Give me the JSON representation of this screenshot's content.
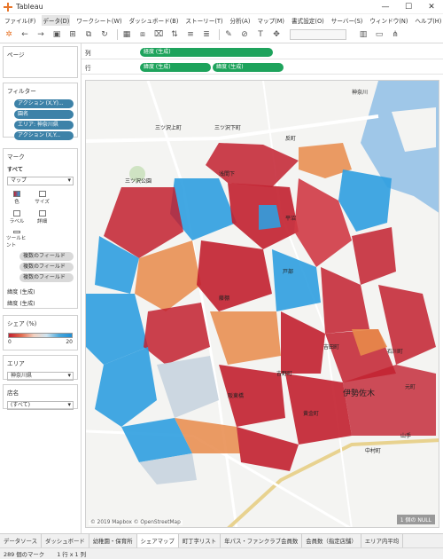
{
  "window": {
    "title": "Tableau"
  },
  "menu": [
    "ファイル(F)",
    "データ(D)",
    "ワークシート(W)",
    "ダッシュボード(B)",
    "ストーリー(T)",
    "分析(A)",
    "マップ(M)",
    "書式設定(O)",
    "サーバー(S)",
    "ウィンドウ(N)",
    "ヘルプ(H)"
  ],
  "left": {
    "pages_title": "ページ",
    "filters_title": "フィルター",
    "filters": [
      "アクション (X,Y)...",
      "園名",
      "エリア: 神奈川県",
      "アクション (X,Y..."
    ],
    "marks_title": "マーク",
    "marks_all": "すべて",
    "mark_type": "マップ",
    "mark_buttons": [
      "色",
      "サイズ",
      "ラベル",
      "詳細",
      "ツールヒント"
    ],
    "multi_fields": [
      "複数のフィールド",
      "複数のフィールド",
      "複数のフィールド"
    ],
    "lat_rows": [
      "緯度 (生成)",
      "緯度 (生成)"
    ],
    "share_title": "シェア (%)",
    "share_min": "0",
    "share_max": "20",
    "area_title": "エリア",
    "area_value": "神奈川県",
    "store_title": "店名",
    "store_value": "(すべて)"
  },
  "shelves": {
    "columns_label": "列",
    "columns_pills": [
      "経度 (生成)"
    ],
    "rows_label": "行",
    "rows_pills": [
      "緯度 (生成)",
      "緯度 (生成)"
    ]
  },
  "map": {
    "labels": [
      "神奈川",
      "三ツ沢上町",
      "三ツ沢下町",
      "反町",
      "三ツ沢公園",
      "浅間下",
      "平沼",
      "戸部",
      "藤棚",
      "伊勢佐木",
      "吉野町",
      "阪東橋",
      "石川町",
      "元町",
      "中村町",
      "吉田町",
      "黄金町",
      "山手"
    ],
    "attribution": "© 2019 Mapbox © OpenStreetMap",
    "null_badge": "1 個の NULL"
  },
  "tabs": [
    "データソース",
    "ダッシュボード",
    "幼稚園・保育所",
    "シェアマップ",
    "町丁字リスト",
    "年パス・ファンクラブ会員数",
    "会員数（指定店舗）",
    "エリア内平均"
  ],
  "status": {
    "marks": "289 個のマーク",
    "rows": "1 行 x 1 列"
  },
  "colors": {
    "red": "#c2202f",
    "orange": "#e8894a",
    "blue": "#2f9fe0",
    "grey": "#c9d5df"
  }
}
